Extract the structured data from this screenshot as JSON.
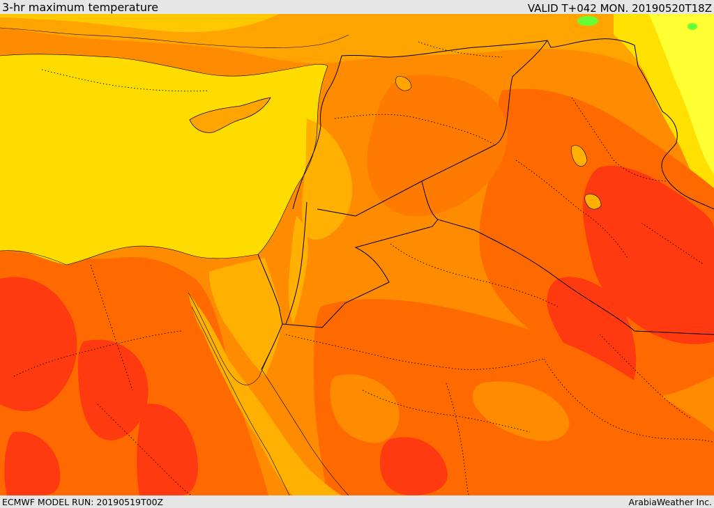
{
  "header": {
    "title": "3-hr maximum temperature",
    "valid": "VALID T+042 MON. 20190520T18Z"
  },
  "footer": {
    "model_run": "ECMWF MODEL RUN: 20190519T00Z",
    "credit": "ArabiaWeather Inc."
  },
  "colors": {
    "sea": "#ffdc00",
    "warm": "#ffb000",
    "hot": "#ff8c00",
    "very_hot": "#ff6a00",
    "extreme": "#ff3a10",
    "cool": "#ffff33",
    "cold": "#66ff33",
    "borders": "#000000"
  }
}
